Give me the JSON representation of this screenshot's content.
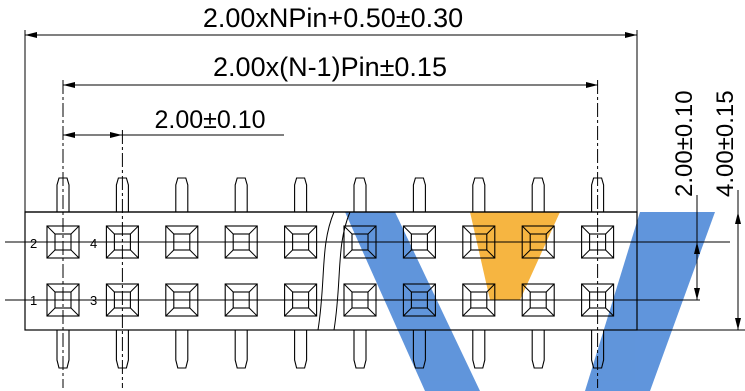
{
  "dimensions": {
    "overall_length": "2.00xNPin+0.50±0.30",
    "pitch_span": "2.00x(N-1)Pin±0.15",
    "pin_pitch": "2.00±0.10",
    "row_pitch": "2.00±0.10",
    "body_height": "4.00±0.15"
  },
  "pin_numbers": {
    "top_row": [
      "2",
      "4"
    ],
    "bottom_row": [
      "1",
      "3"
    ]
  },
  "pin_columns_drawn": 10,
  "watermark_colors": {
    "blue": "#4f8ad8",
    "orange": "#f6ad2d"
  }
}
